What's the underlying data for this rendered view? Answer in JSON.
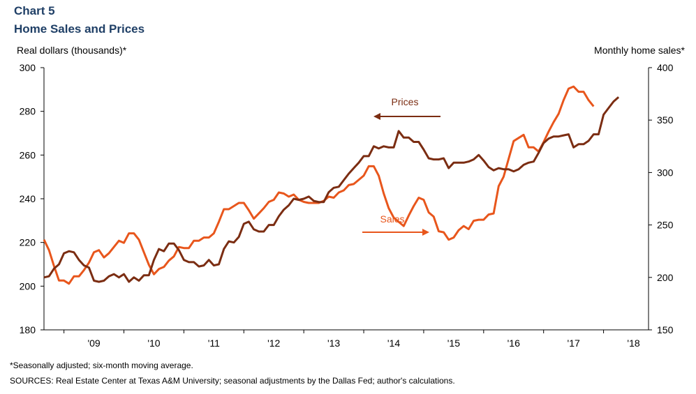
{
  "header": {
    "chart_number": "Chart 5",
    "title": "Home Sales and Prices"
  },
  "footnotes": {
    "note": "*Seasonally adjusted; six-month moving average.",
    "sources": "SOURCES: Real Estate Center at Texas A&M University; seasonal adjustments by the Dallas Fed; author's calculations."
  },
  "colors": {
    "prices": "#7b2d12",
    "sales": "#e8561c",
    "axis": "#000000",
    "title": "#1f3f66"
  },
  "chart_data": {
    "type": "line",
    "title": "Home Sales and Prices",
    "left_axis_label": "Real dollars (thousands)*",
    "right_axis_label": "Monthly home sales*",
    "left_ylim": [
      180,
      300
    ],
    "left_ticks": [
      180,
      200,
      220,
      240,
      260,
      280,
      300
    ],
    "right_ylim": [
      150,
      400
    ],
    "right_ticks": [
      150,
      200,
      250,
      300,
      350,
      400
    ],
    "x_range": [
      2008.6667,
      2018.75
    ],
    "x_tick_labels": [
      "'09",
      "'10",
      "'11",
      "'12",
      "'13",
      "'14",
      "'15",
      "'16",
      "'17",
      "'18"
    ],
    "grid": false,
    "annotations": [
      {
        "text": "Prices",
        "arrow": "left",
        "series": "Prices"
      },
      {
        "text": "Sales",
        "arrow": "right",
        "series": "Sales"
      }
    ],
    "series": [
      {
        "name": "Prices",
        "axis": "left",
        "start": "2008-09",
        "values": [
          204,
          204.5,
          208,
          210,
          215,
          216,
          215.5,
          212,
          209.5,
          208.5,
          202.5,
          202,
          202.5,
          204.5,
          205.5,
          204,
          205.5,
          202,
          204,
          202.5,
          205,
          205,
          212,
          217,
          216,
          219.5,
          219.5,
          216.5,
          212,
          211,
          211,
          209,
          209.5,
          212,
          209.5,
          210,
          217,
          220.5,
          220,
          222.5,
          228.5,
          229.5,
          226,
          225,
          225,
          228,
          228,
          232,
          235,
          237,
          240,
          239.5,
          240,
          241,
          239,
          238.5,
          238.5,
          243,
          245,
          245.5,
          248.5,
          251.5,
          254,
          256.5,
          259.5,
          259.5,
          264,
          263,
          264,
          263.5,
          263.5,
          271,
          268,
          268,
          266,
          266,
          262.5,
          258.5,
          258,
          258,
          258.5,
          254,
          256.5,
          256.5,
          256.5,
          257,
          258,
          260,
          257.5,
          254.5,
          253,
          254,
          253.5,
          253.5,
          252.5,
          253.5,
          255.5,
          256.5,
          257,
          261,
          265.5,
          267.5,
          268.5,
          268.5,
          269,
          269.5,
          263.5,
          265,
          265,
          266.5,
          269.5,
          269.5,
          278.5,
          281.5,
          284.5,
          286.5
        ]
      },
      {
        "name": "Sales",
        "axis": "right",
        "start": "2008-09",
        "values": [
          236,
          226,
          211,
          197,
          197,
          194,
          201,
          201,
          207,
          214,
          224,
          226,
          219,
          223,
          229,
          235,
          233,
          242,
          242,
          236,
          224,
          212,
          203,
          208,
          210,
          216,
          220,
          229,
          228,
          228,
          235,
          235,
          238,
          238,
          242,
          253,
          265,
          265,
          268,
          271,
          271,
          264,
          256,
          261,
          266,
          272,
          274,
          281,
          280,
          277,
          279,
          274,
          272,
          271,
          271,
          271,
          273,
          277,
          276,
          281,
          283,
          288,
          289,
          293,
          297,
          306,
          306,
          297,
          280,
          266,
          257,
          253,
          249,
          259,
          268,
          276,
          274,
          262,
          258,
          244,
          243,
          236,
          238,
          245,
          249,
          246,
          254,
          255,
          255,
          260,
          261,
          287,
          296,
          313,
          330,
          333,
          336,
          324,
          324,
          320,
          329,
          339,
          348,
          356,
          369,
          380,
          382,
          377,
          377,
          369,
          363
        ]
      }
    ]
  }
}
